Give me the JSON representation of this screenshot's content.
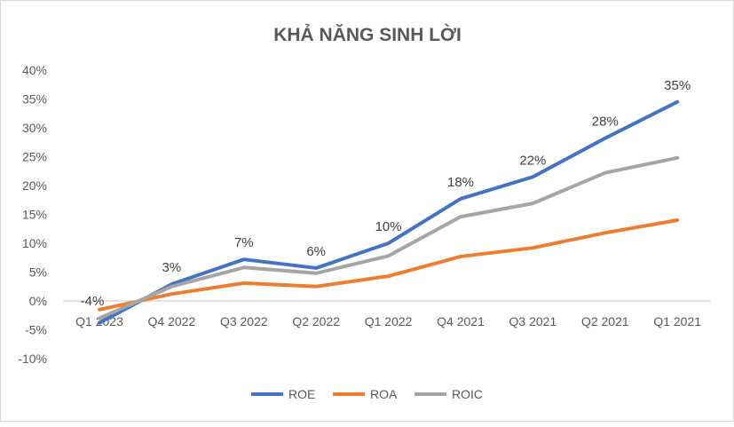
{
  "chart_data": {
    "type": "line",
    "title": "KHẢ NĂNG SINH LỜI",
    "xlabel": "",
    "ylabel": "",
    "categories": [
      "Q1 2023",
      "Q4 2022",
      "Q3 2022",
      "Q2 2022",
      "Q1 2022",
      "Q4 2021",
      "Q3 2021",
      "Q2 2021",
      "Q1 2021"
    ],
    "ylim": [
      -10,
      40
    ],
    "yticks": [
      -10,
      -5,
      0,
      5,
      10,
      15,
      20,
      25,
      30,
      35,
      40
    ],
    "ytick_labels": [
      "-10%",
      "-5%",
      "0%",
      "5%",
      "10%",
      "15%",
      "20%",
      "25%",
      "30%",
      "35%",
      "40%"
    ],
    "legend_position": "bottom",
    "series": [
      {
        "name": "ROE",
        "color": "#4472C4",
        "values": [
          -3.8,
          2.9,
          7.2,
          5.7,
          10.0,
          17.7,
          21.5,
          28.2,
          34.5
        ],
        "data_labels": [
          "-4%",
          "3%",
          "7%",
          "6%",
          "10%",
          "18%",
          "22%",
          "28%",
          "35%"
        ]
      },
      {
        "name": "ROA",
        "color": "#ED7D31",
        "values": [
          -1.5,
          1.2,
          3.1,
          2.5,
          4.3,
          7.7,
          9.2,
          11.8,
          14.0
        ]
      },
      {
        "name": "ROIC",
        "color": "#A5A5A5",
        "values": [
          -3.0,
          2.5,
          5.8,
          4.8,
          7.8,
          14.6,
          16.9,
          22.2,
          24.8
        ]
      }
    ]
  }
}
